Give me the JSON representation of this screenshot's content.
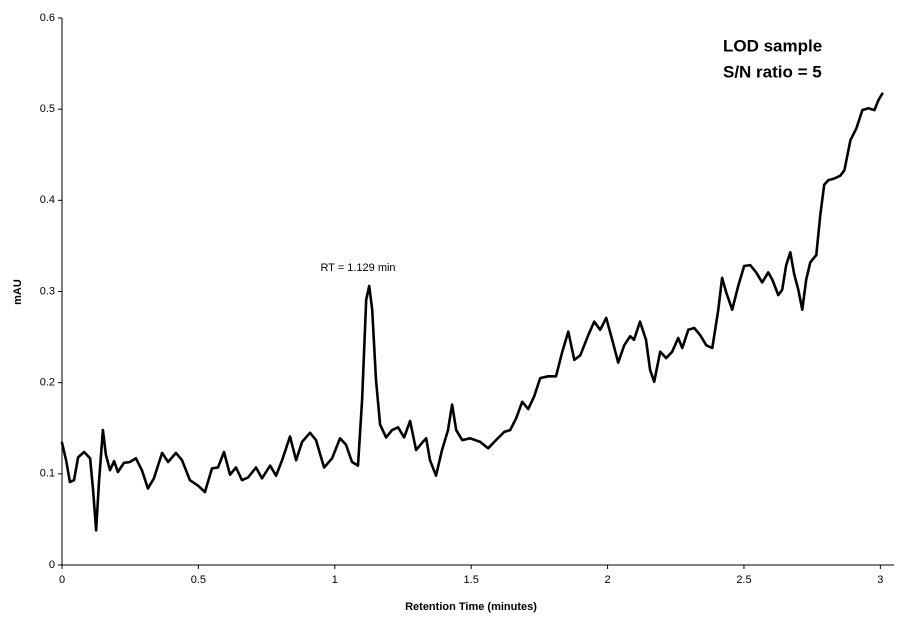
{
  "chart_data": {
    "type": "line",
    "xlabel": "Retention Time (minutes)",
    "ylabel": "mAU",
    "annotations": [
      "RT = 1.129 min",
      "LOD sample",
      "S/N ratio = 5"
    ],
    "color": "#000000",
    "x": [
      0,
      0.015,
      0.029,
      0.044,
      0.059,
      0.081,
      0.103,
      0.114,
      0.125,
      0.136,
      0.15,
      0.161,
      0.176,
      0.191,
      0.205,
      0.227,
      0.249,
      0.271,
      0.293,
      0.315,
      0.337,
      0.367,
      0.389,
      0.418,
      0.44,
      0.469,
      0.499,
      0.524,
      0.55,
      0.572,
      0.594,
      0.616,
      0.638,
      0.66,
      0.682,
      0.711,
      0.733,
      0.763,
      0.785,
      0.807,
      0.836,
      0.858,
      0.88,
      0.909,
      0.931,
      0.961,
      0.99,
      1.019,
      1.041,
      1.063,
      1.085,
      1.1,
      1.115,
      1.126,
      1.137,
      1.151,
      1.166,
      1.188,
      1.21,
      1.232,
      1.254,
      1.276,
      1.298,
      1.32,
      1.335,
      1.349,
      1.371,
      1.393,
      1.415,
      1.43,
      1.445,
      1.467,
      1.496,
      1.533,
      1.562,
      1.591,
      1.621,
      1.643,
      1.665,
      1.687,
      1.709,
      1.731,
      1.753,
      1.782,
      1.811,
      1.834,
      1.856,
      1.878,
      1.9,
      1.929,
      1.951,
      1.973,
      1.995,
      2.017,
      2.039,
      2.061,
      2.083,
      2.097,
      2.119,
      2.141,
      2.156,
      2.171,
      2.193,
      2.215,
      2.237,
      2.259,
      2.274,
      2.296,
      2.318,
      2.34,
      2.362,
      2.384,
      2.406,
      2.42,
      2.435,
      2.457,
      2.479,
      2.501,
      2.523,
      2.545,
      2.567,
      2.589,
      2.604,
      2.626,
      2.64,
      2.655,
      2.67,
      2.684,
      2.699,
      2.714,
      2.728,
      2.743,
      2.765,
      2.78,
      2.794,
      2.809,
      2.831,
      2.853,
      2.868,
      2.89,
      2.912,
      2.934,
      2.956,
      2.978,
      2.993,
      3.007
    ],
    "values": [
      0.134,
      0.115,
      0.091,
      0.093,
      0.118,
      0.124,
      0.117,
      0.082,
      0.038,
      0.093,
      0.148,
      0.121,
      0.104,
      0.114,
      0.102,
      0.112,
      0.113,
      0.117,
      0.104,
      0.084,
      0.095,
      0.123,
      0.113,
      0.123,
      0.115,
      0.093,
      0.087,
      0.08,
      0.106,
      0.107,
      0.124,
      0.099,
      0.107,
      0.093,
      0.096,
      0.107,
      0.095,
      0.109,
      0.098,
      0.115,
      0.141,
      0.115,
      0.135,
      0.145,
      0.137,
      0.107,
      0.117,
      0.139,
      0.132,
      0.113,
      0.109,
      0.181,
      0.291,
      0.306,
      0.28,
      0.203,
      0.154,
      0.14,
      0.148,
      0.151,
      0.14,
      0.158,
      0.126,
      0.134,
      0.139,
      0.115,
      0.098,
      0.126,
      0.148,
      0.176,
      0.148,
      0.137,
      0.139,
      0.135,
      0.128,
      0.137,
      0.146,
      0.148,
      0.161,
      0.179,
      0.171,
      0.185,
      0.205,
      0.207,
      0.207,
      0.234,
      0.256,
      0.225,
      0.23,
      0.252,
      0.267,
      0.258,
      0.271,
      0.247,
      0.222,
      0.241,
      0.251,
      0.247,
      0.267,
      0.247,
      0.214,
      0.201,
      0.234,
      0.227,
      0.234,
      0.249,
      0.238,
      0.258,
      0.26,
      0.252,
      0.241,
      0.238,
      0.28,
      0.315,
      0.299,
      0.28,
      0.306,
      0.328,
      0.329,
      0.321,
      0.31,
      0.321,
      0.313,
      0.296,
      0.302,
      0.329,
      0.343,
      0.319,
      0.302,
      0.28,
      0.313,
      0.332,
      0.34,
      0.384,
      0.417,
      0.422,
      0.424,
      0.427,
      0.433,
      0.466,
      0.479,
      0.499,
      0.501,
      0.499,
      0.51,
      0.517
    ],
    "xlim": [
      0,
      3.05
    ],
    "ylim": [
      0,
      0.6
    ],
    "xticks": [
      0,
      0.5,
      1,
      1.5,
      2,
      2.5,
      3
    ],
    "yticks": [
      0,
      0.1,
      0.2,
      0.3,
      0.4,
      0.5,
      0.6
    ]
  }
}
